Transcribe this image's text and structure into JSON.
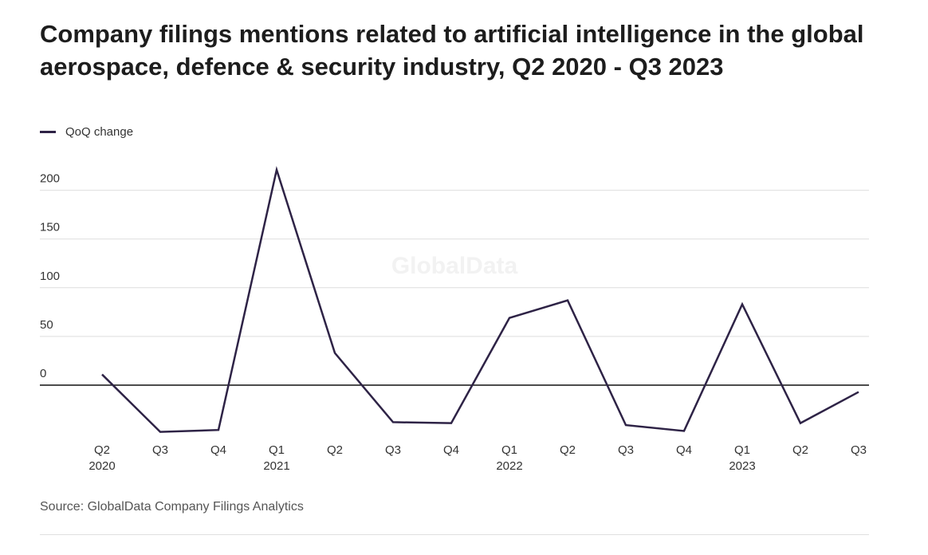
{
  "chart_data": {
    "type": "line",
    "title": "Company filings mentions related to artificial intelligence in the global aerospace, defence & security industry, Q2 2020 - Q3 2023",
    "categories": [
      "Q2\n2020",
      "Q3",
      "Q4",
      "Q1\n2021",
      "Q2",
      "Q3",
      "Q4",
      "Q1\n2022",
      "Q2",
      "Q3",
      "Q4",
      "Q1\n2023",
      "Q2",
      "Q3"
    ],
    "series": [
      {
        "name": "QoQ change",
        "color": "#2e2346",
        "values": [
          11,
          -48,
          -46,
          221,
          33,
          -38,
          -39,
          69,
          87,
          -41,
          -47,
          83,
          -39,
          -7
        ]
      }
    ],
    "yticks": [
      0,
      50,
      100,
      150,
      200
    ],
    "ylim": [
      -55,
      230
    ],
    "grid": true,
    "legend": "top-left",
    "xlabel": "",
    "ylabel": "",
    "watermark": "GlobalData",
    "source": "Source: GlobalData Company Filings Analytics"
  }
}
